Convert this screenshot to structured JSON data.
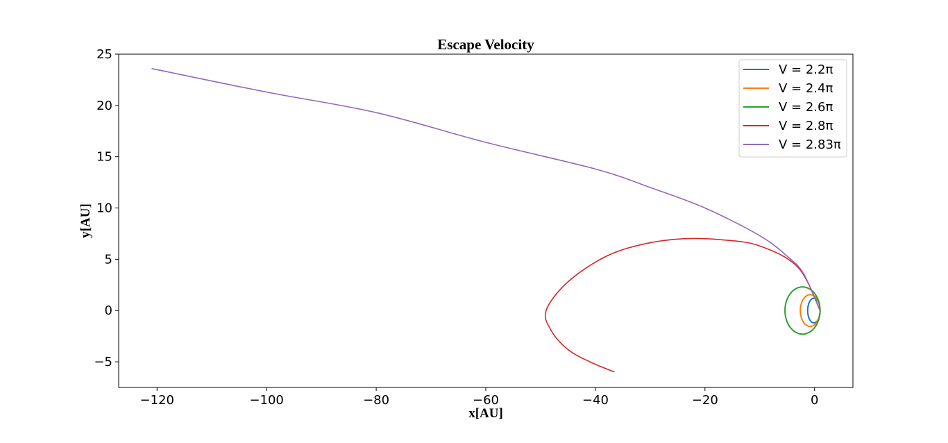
{
  "chart_data": {
    "type": "line",
    "title": "Escape Velocity",
    "xlabel": "x[AU]",
    "ylabel": "y[AU]",
    "xlim": [
      -127,
      7
    ],
    "ylim": [
      -7.5,
      25
    ],
    "xticks": [
      -120,
      -100,
      -80,
      -60,
      -40,
      -20,
      0
    ],
    "yticks": [
      -5,
      0,
      5,
      10,
      15,
      20,
      25
    ],
    "xtick_labels": [
      "−120",
      "−100",
      "−80",
      "−60",
      "−40",
      "−20",
      "0"
    ],
    "ytick_labels": [
      "−5",
      "0",
      "5",
      "10",
      "15",
      "20",
      "25"
    ],
    "grid": false,
    "legend_position": "top-right",
    "series": [
      {
        "name": "V = 2.2π",
        "color": "#1f77b4",
        "orbit": {
          "cx": -0.13,
          "rx": 1.13,
          "ry": 1.2
        }
      },
      {
        "name": "V = 2.4π",
        "color": "#ff7f0e",
        "orbit": {
          "cx": -0.8,
          "rx": 1.8,
          "ry": 1.55
        }
      },
      {
        "name": "V = 2.6π",
        "color": "#2ca02c",
        "orbit": {
          "cx": -2.2,
          "rx": 3.2,
          "ry": 2.3
        }
      },
      {
        "name": "V = 2.8π",
        "color": "#d62728",
        "points": [
          [
            1,
            0
          ],
          [
            -3,
            4.2
          ],
          [
            -10,
            6.3
          ],
          [
            -17,
            6.9
          ],
          [
            -24,
            7.0
          ],
          [
            -31,
            6.5
          ],
          [
            -38,
            5.3
          ],
          [
            -45,
            2.8
          ],
          [
            -49,
            0
          ],
          [
            -48,
            -2.0
          ],
          [
            -45,
            -3.8
          ],
          [
            -41,
            -5.0
          ],
          [
            -36.5,
            -6.0
          ]
        ]
      },
      {
        "name": "V = 2.83π",
        "color": "#9467bd",
        "points": [
          [
            1,
            0
          ],
          [
            -2,
            3.6
          ],
          [
            -5,
            5.3
          ],
          [
            -10,
            7.3
          ],
          [
            -20,
            10.0
          ],
          [
            -30,
            12.0
          ],
          [
            -40,
            13.8
          ],
          [
            -60,
            16.4
          ],
          [
            -80,
            19.3
          ],
          [
            -100,
            21.3
          ],
          [
            -121,
            23.6
          ]
        ]
      }
    ]
  }
}
